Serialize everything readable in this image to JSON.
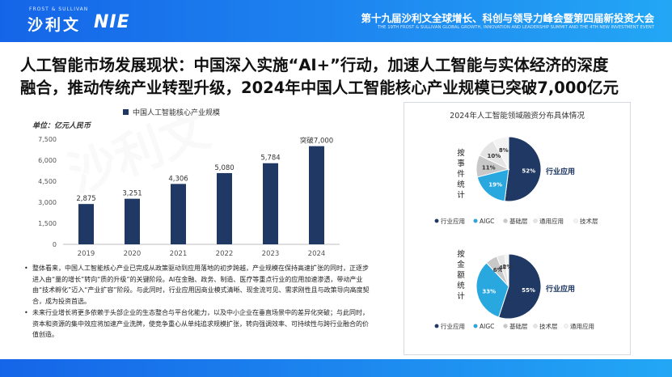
{
  "header": {
    "brand_small": "FROST & SULLIVAN",
    "brand_cn": "沙利文",
    "brand_logo": "NIE",
    "conference_title": "第十九届沙利文全球增长、科创与领导力峰会暨第四届新投资大会",
    "conference_subtitle": "THE 19TH FROST & SULLIVAN GLOBAL GROWTH, INNOVATION AND LEADERSHIP SUMMIT AND THE 4TH NEW INVESTMENT EVENT"
  },
  "headline": {
    "line1": "人工智能市场发展现状：中国深入实施“AI+”行动，加速人工智能与实体经济的深度",
    "line2": "融合，推动传统产业转型升级，2024年中国人工智能核心产业规模已突破7,000亿元"
  },
  "bullets": [
    "整体看来，中国人工智能核心产业已完成从政策驱动到应用落地的初步跨越，产业规模在保持高速扩张的同时，正逐步进入由“量的增长”转向“质的升级”的关键阶段。AI在金融、政务、制造、医疗等重点行业的应用加速渗透，带动产业由“技术孵化”迈入“产业扩容”阶段。与此同时，行业应用因商业模式清晰、现金流可见、需求刚性且与政策导向高度契合，成为投资首选。",
    "未来行业增长将更多依赖于头部企业的生态整合与平台化能力，以及中小企业在垂直场景中的差异化突破；与此同时，资本和资源的集中效应将加速产业洗牌，使竞争重心从单纯追求规模扩张，转向强调效率、可持续性与跨行业融合的价值创造。"
  ],
  "colors": {
    "brand_blue": "#1565e8",
    "bar_navy": "#1f3864",
    "pie_navy": "#1f3864",
    "pie_sky": "#29a8e0",
    "pie_gray": "#c8c8c8",
    "pie_lightgray": "#e4e4e4",
    "pie_pale": "#f3f3f3"
  },
  "right_panel": {
    "title": "2024年人工智能领域融资分布具体情况",
    "pie1_label": "按事件统计",
    "pie2_label": "按金额统计"
  },
  "chart_data": [
    {
      "type": "bar",
      "title": "",
      "unit_label": "单位：亿元人民币",
      "legend": "中国人工智能核心产业规模",
      "categories": [
        "2019",
        "2020",
        "2021",
        "2022",
        "2023",
        "2024"
      ],
      "values": [
        2875,
        3251,
        4306,
        5080,
        5784,
        7000
      ],
      "data_labels": [
        "2,875",
        "3,251",
        "4,306",
        "5,080",
        "5,784",
        "突破7,000"
      ],
      "ylim": [
        0,
        7500
      ],
      "yticks": [
        0,
        1500,
        3000,
        4500,
        6000,
        7500
      ],
      "ytick_labels": [
        "0",
        "1,500",
        "3,000",
        "4,500",
        "6,000",
        "7,500"
      ],
      "grid": false,
      "legend_position": "top-left"
    },
    {
      "type": "pie",
      "title": "按事件统计",
      "slices": [
        {
          "name": "行业应用",
          "value": 52,
          "label": "52%",
          "color": "#1f3864",
          "callout": "行业应用"
        },
        {
          "name": "AIGC",
          "value": 19,
          "label": "19%",
          "color": "#29a8e0"
        },
        {
          "name": "基础层",
          "value": 11,
          "label": "11%",
          "color": "#c8c8c8"
        },
        {
          "name": "通用应用",
          "value": 10,
          "label": "10%",
          "color": "#e4e4e4"
        },
        {
          "name": "技术层",
          "value": 8,
          "label": "8%",
          "color": "#f3f3f3"
        }
      ],
      "legend": [
        "行业应用",
        "AIGC",
        "基础层",
        "通用应用",
        "技术层"
      ],
      "legend_position": "bottom"
    },
    {
      "type": "pie",
      "title": "按金额统计",
      "slices": [
        {
          "name": "行业应用",
          "value": 55,
          "label": "55%",
          "color": "#1f3864",
          "callout": "行业应用"
        },
        {
          "name": "AIGC",
          "value": 33,
          "label": "33%",
          "color": "#29a8e0"
        },
        {
          "name": "基础层",
          "value": 6,
          "label": "6%",
          "color": "#c8c8c8"
        },
        {
          "name": "技术层",
          "value": 4,
          "label": "4%",
          "color": "#e4e4e4"
        },
        {
          "name": "通用应用",
          "value": 2,
          "label": "2%",
          "color": "#f3f3f3"
        }
      ],
      "legend": [
        "行业应用",
        "AIGC",
        "基础层",
        "技术层",
        "通用应用"
      ],
      "legend_position": "bottom"
    }
  ]
}
